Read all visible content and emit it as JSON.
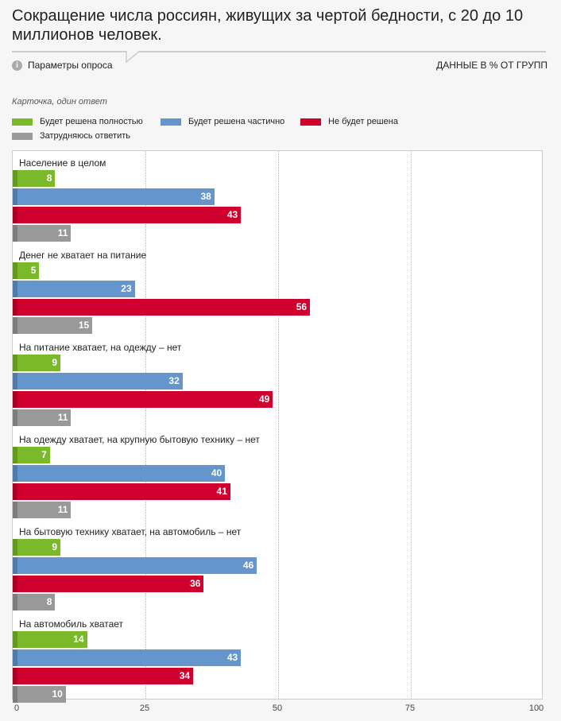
{
  "title": "Сокращение числа россиян, живущих за чертой бедности, с 20 до 10 миллионов человек.",
  "params_label": "Параметры опроса",
  "units_label": "ДАННЫЕ В % ОТ ГРУПП",
  "question_type": "Карточка, один ответ",
  "chart_data": {
    "type": "bar",
    "orientation": "horizontal",
    "xlim": [
      0,
      100
    ],
    "ticks": [
      "0",
      "25",
      "50",
      "75",
      "100"
    ],
    "tick_values": [
      0,
      25,
      50,
      75,
      100
    ],
    "legend": [
      {
        "name": "Будет решена полностью",
        "color": "#7ab929"
      },
      {
        "name": "Будет решена частично",
        "color": "#6495cd"
      },
      {
        "name": "Не будет решена",
        "color": "#d0002e"
      },
      {
        "name": "Затрудняюсь ответить",
        "color": "#999999"
      }
    ],
    "categories": [
      "Население в целом",
      "Денег не хватает на питание",
      "На питание хватает, на одежду – нет",
      "На одежду хватает, на крупную бытовую технику – нет",
      "На бытовую технику хватает, на автомобиль – нет",
      "На автомобиль хватает"
    ],
    "series": [
      {
        "name": "Будет решена полностью",
        "values": [
          8,
          5,
          9,
          7,
          9,
          14
        ]
      },
      {
        "name": "Будет решена частично",
        "values": [
          38,
          23,
          32,
          40,
          46,
          43
        ]
      },
      {
        "name": "Не будет решена",
        "values": [
          43,
          56,
          49,
          41,
          36,
          34
        ]
      },
      {
        "name": "Затрудняюсь ответить",
        "values": [
          11,
          15,
          11,
          11,
          8,
          10
        ]
      }
    ]
  }
}
